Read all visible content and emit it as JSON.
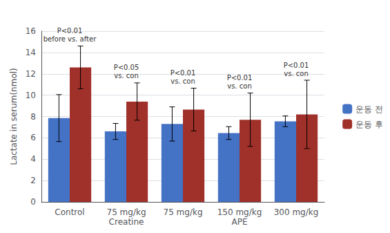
{
  "chart_data": {
    "type": "bar",
    "categories": [
      "Control",
      "75 mg/kg\nCreatine",
      "75 mg/kg",
      "150 mg/kg\nAPE",
      "300 mg/kg"
    ],
    "series": [
      {
        "name": "운동 전",
        "color": "#4472C4",
        "values": [
          7.85,
          6.6,
          7.3,
          6.45,
          7.55
        ],
        "errors": [
          2.2,
          0.75,
          1.6,
          0.6,
          0.5
        ]
      },
      {
        "name": "운동 후",
        "color": "#A0302A",
        "values": [
          12.6,
          9.4,
          8.65,
          7.7,
          8.2
        ],
        "errors": [
          2.0,
          1.75,
          2.0,
          2.5,
          3.2
        ]
      }
    ],
    "ylabel": "Lactate in serum(nmol)",
    "ylim": [
      0,
      16
    ],
    "yticks": [
      0,
      2,
      4,
      6,
      8,
      10,
      12,
      14,
      16
    ],
    "grid": true,
    "legend": "right",
    "annotations": [
      {
        "text": "P<0.01\nbefore vs. after",
        "category": "Control"
      },
      {
        "text": "P<0.05\nvs. con",
        "category": "75 mg/kg\nCreatine"
      },
      {
        "text": "P<0.01\nvs. con",
        "category": "75 mg/kg"
      },
      {
        "text": "P<0.01\nvs. con",
        "category": "150 mg/kg\nAPE"
      },
      {
        "text": "P<0.01\nvs. con",
        "category": "300 mg/kg"
      }
    ]
  }
}
